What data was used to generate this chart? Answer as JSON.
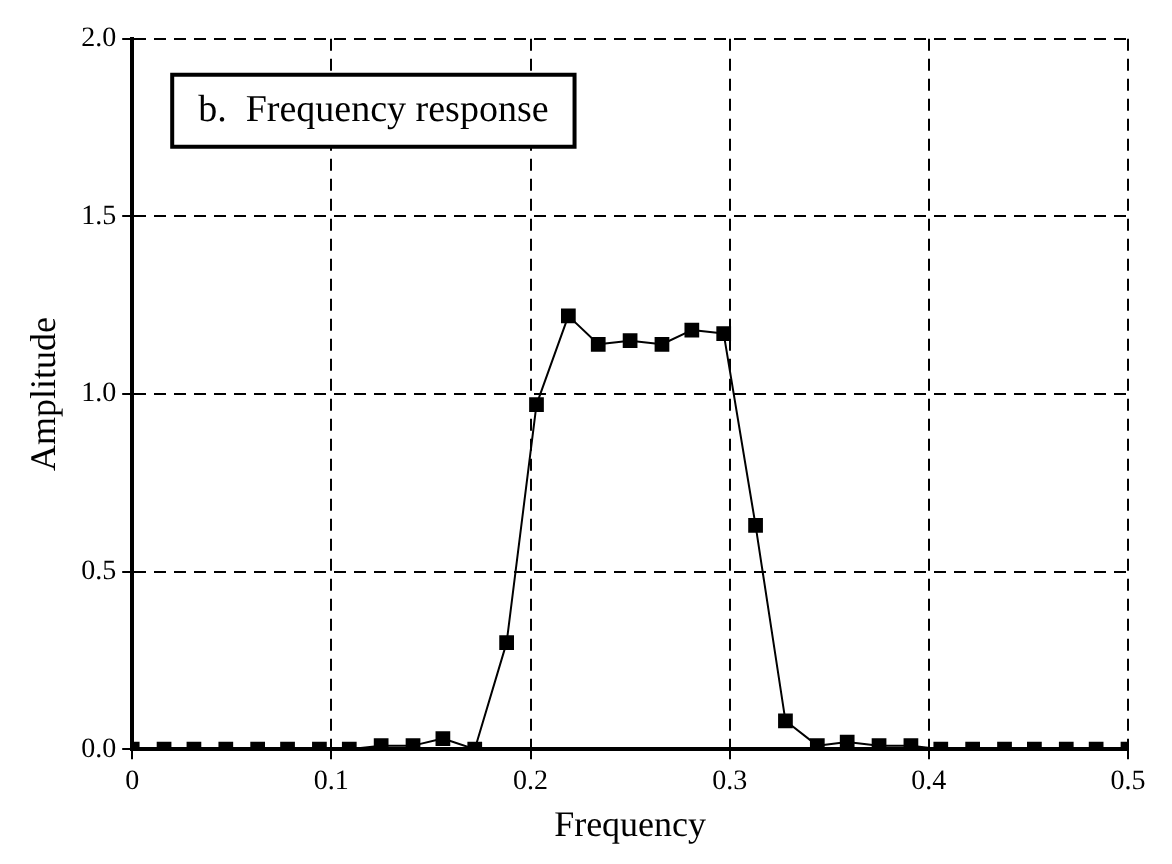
{
  "chart_data": {
    "type": "line",
    "annotations": [
      "b.  Frequency response"
    ],
    "xlabel": "Frequency",
    "ylabel": "Amplitude",
    "x": [
      0,
      0.016,
      0.031,
      0.047,
      0.063,
      0.078,
      0.094,
      0.109,
      0.125,
      0.141,
      0.156,
      0.172,
      0.188,
      0.203,
      0.219,
      0.234,
      0.25,
      0.266,
      0.281,
      0.297,
      0.313,
      0.328,
      0.344,
      0.359,
      0.375,
      0.391,
      0.406,
      0.422,
      0.438,
      0.453,
      0.469,
      0.484,
      0.5
    ],
    "series": [
      {
        "color": "#000000",
        "values": [
          0,
          0,
          0,
          0,
          0,
          0,
          0,
          0,
          0.01,
          0.01,
          0.03,
          0,
          0.3,
          0.97,
          1.22,
          1.14,
          1.15,
          1.14,
          1.18,
          1.17,
          0.63,
          0.08,
          0.01,
          0.02,
          0.01,
          0.01,
          0,
          0,
          0,
          0,
          0,
          0,
          0
        ]
      }
    ],
    "xlim": [
      0,
      0.5
    ],
    "xticks": [
      0,
      0.1,
      0.2,
      0.3,
      0.4,
      0.5
    ],
    "ylim": [
      0,
      2
    ],
    "yticks": [
      {
        "value": 0,
        "label": "0.0"
      },
      {
        "value": 0.5,
        "label": "0.5"
      },
      {
        "value": 1,
        "label": "1.0"
      },
      {
        "value": 1.5,
        "label": "1.5"
      },
      {
        "value": 2,
        "label": "2.0"
      }
    ],
    "grid": true,
    "marker": "square",
    "line_style": "solid",
    "legend": false
  }
}
